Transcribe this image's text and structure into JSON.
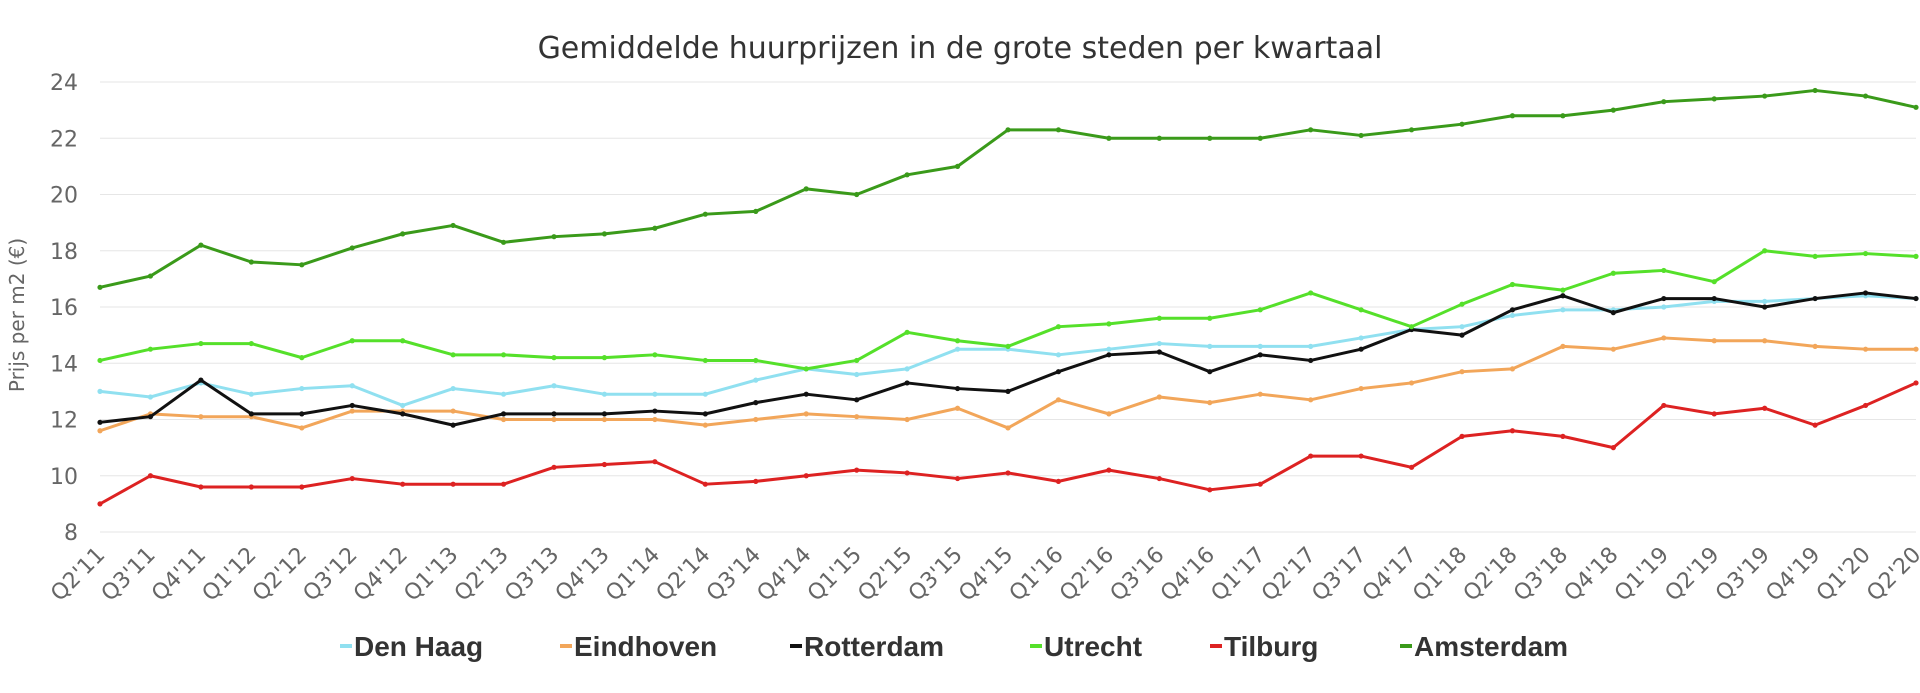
{
  "chart_data": {
    "type": "line",
    "title": "Gemiddelde huurprijzen in de grote steden per kwartaal",
    "ylabel": "Prijs per m2 (€)",
    "xlabel": "",
    "ylim": [
      8,
      24
    ],
    "yticks": [
      8,
      10,
      12,
      14,
      16,
      18,
      20,
      22,
      24
    ],
    "grid": true,
    "legend_position": "bottom",
    "categories": [
      "Q2'11",
      "Q3'11",
      "Q4'11",
      "Q1'12",
      "Q2'12",
      "Q3'12",
      "Q4'12",
      "Q1'13",
      "Q2'13",
      "Q3'13",
      "Q4'13",
      "Q1'14",
      "Q2'14",
      "Q3'14",
      "Q4'14",
      "Q1'15",
      "Q2'15",
      "Q3'15",
      "Q4'15",
      "Q1'16",
      "Q2'16",
      "Q3'16",
      "Q4'16",
      "Q1'17",
      "Q2'17",
      "Q3'17",
      "Q4'17",
      "Q1'18",
      "Q2'18",
      "Q3'18",
      "Q4'18",
      "Q1'19",
      "Q2'19",
      "Q3'19",
      "Q4'19",
      "Q1'20",
      "Q2'20"
    ],
    "series": [
      {
        "name": "Den Haag",
        "color": "#90e0f0",
        "values": [
          13.0,
          12.8,
          13.3,
          12.9,
          13.1,
          13.2,
          12.5,
          13.1,
          12.9,
          13.2,
          12.9,
          12.9,
          12.9,
          13.4,
          13.8,
          13.6,
          13.8,
          14.5,
          14.5,
          14.3,
          14.5,
          14.7,
          14.6,
          14.6,
          14.6,
          14.9,
          15.2,
          15.3,
          15.7,
          15.9,
          15.9,
          16.0,
          16.2,
          16.2,
          16.3,
          16.4,
          16.3
        ]
      },
      {
        "name": "Eindhoven",
        "color": "#f2a65a",
        "values": [
          11.6,
          12.2,
          12.1,
          12.1,
          11.7,
          12.3,
          12.3,
          12.3,
          12.0,
          12.0,
          12.0,
          12.0,
          11.8,
          12.0,
          12.2,
          12.1,
          12.0,
          12.4,
          11.7,
          12.7,
          12.2,
          12.8,
          12.6,
          12.9,
          12.7,
          13.1,
          13.3,
          13.7,
          13.8,
          14.6,
          14.5,
          14.9,
          14.8,
          14.8,
          14.6,
          14.5,
          14.5
        ]
      },
      {
        "name": "Rotterdam",
        "color": "#111111",
        "values": [
          11.9,
          12.1,
          13.4,
          12.2,
          12.2,
          12.5,
          12.2,
          11.8,
          12.2,
          12.2,
          12.2,
          12.3,
          12.2,
          12.6,
          12.9,
          12.7,
          13.3,
          13.1,
          13.0,
          13.7,
          14.3,
          14.4,
          13.7,
          14.3,
          14.1,
          14.5,
          15.2,
          15.0,
          15.9,
          16.4,
          15.8,
          16.3,
          16.3,
          16.0,
          16.3,
          16.5,
          16.3
        ]
      },
      {
        "name": "Utrecht",
        "color": "#55e02a",
        "values": [
          14.1,
          14.5,
          14.7,
          14.7,
          14.2,
          14.8,
          14.8,
          14.3,
          14.3,
          14.2,
          14.2,
          14.3,
          14.1,
          14.1,
          13.8,
          14.1,
          15.1,
          14.8,
          14.6,
          15.3,
          15.4,
          15.6,
          15.6,
          15.9,
          16.5,
          15.9,
          15.3,
          16.1,
          16.8,
          16.6,
          17.2,
          17.3,
          16.9,
          18.0,
          17.8,
          17.9,
          17.8
        ]
      },
      {
        "name": "Tilburg",
        "color": "#dd2222",
        "values": [
          9.0,
          10.0,
          9.6,
          9.6,
          9.6,
          9.9,
          9.7,
          9.7,
          9.7,
          10.3,
          10.4,
          10.5,
          9.7,
          9.8,
          10.0,
          10.2,
          10.1,
          9.9,
          10.1,
          9.8,
          10.2,
          9.9,
          9.5,
          9.7,
          10.7,
          10.7,
          10.3,
          11.4,
          11.6,
          11.4,
          11.0,
          12.5,
          12.2,
          12.4,
          11.8,
          12.5,
          13.3
        ]
      },
      {
        "name": "Amsterdam",
        "color": "#3a9a1a",
        "values": [
          16.7,
          17.1,
          18.2,
          17.6,
          17.5,
          18.1,
          18.6,
          18.9,
          18.3,
          18.5,
          18.6,
          18.8,
          19.3,
          19.4,
          20.2,
          20.0,
          20.7,
          21.0,
          22.3,
          22.3,
          22.0,
          22.0,
          22.0,
          22.0,
          22.3,
          22.1,
          22.3,
          22.5,
          22.8,
          22.8,
          23.0,
          23.3,
          23.4,
          23.5,
          23.7,
          23.5,
          23.1
        ]
      }
    ]
  }
}
